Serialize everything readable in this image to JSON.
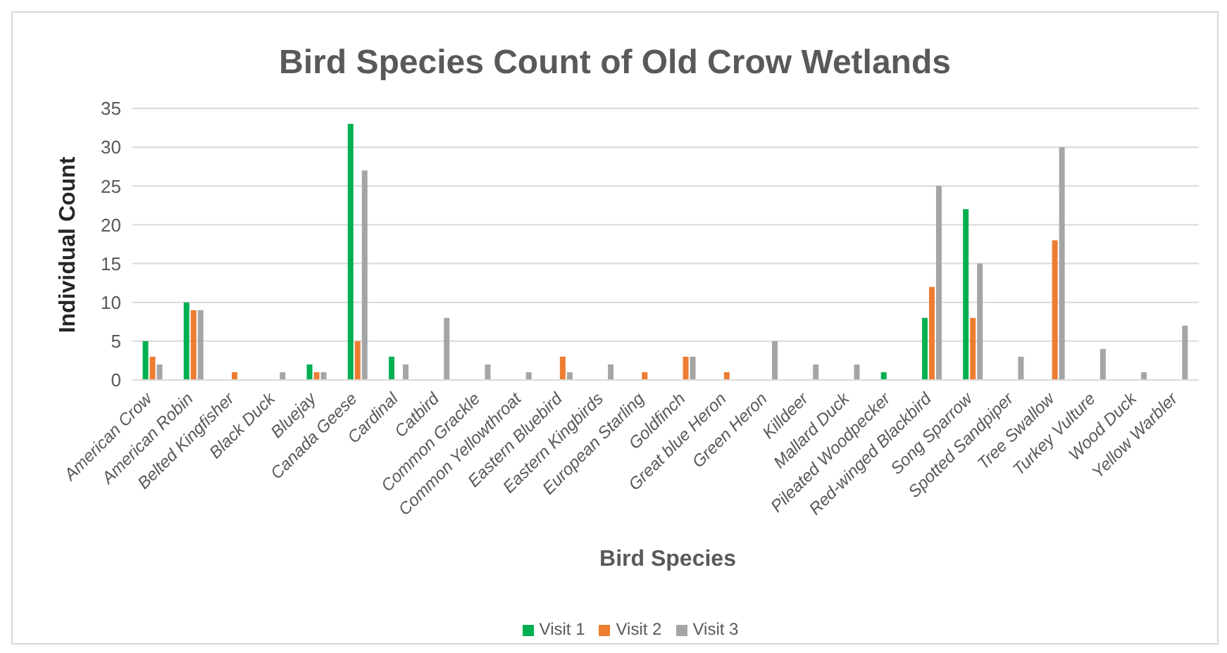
{
  "chart_data": {
    "type": "bar",
    "title": "Bird Species Count of Old Crow Wetlands",
    "xlabel": "Bird Species",
    "ylabel": "Individual Count",
    "categories": [
      "American Crow",
      "American Robin",
      "Belted Kingfisher",
      "Black Duck",
      "Bluejay",
      "Canada Geese",
      "Cardinal",
      "Catbird",
      "Common Grackle",
      "Common Yellowthroat",
      "Eastern Bluebird",
      "Eastern Kingbirds",
      "European Starling",
      "Goldfinch",
      "Great blue Heron",
      "Green Heron",
      "Killdeer",
      "Mallard Duck",
      "Pileated Woodpecker",
      "Red-winged Blackbird",
      "Song Sparrow",
      "Spotted Sandpiper",
      "Tree Swallow",
      "Turkey Vulture",
      "Wood Duck",
      "Yellow Warbler"
    ],
    "series": [
      {
        "name": "Visit 1",
        "color": "#00b050",
        "values": [
          5,
          10,
          0,
          0,
          2,
          33,
          3,
          0,
          0,
          0,
          0,
          0,
          0,
          0,
          0,
          0,
          0,
          0,
          1,
          8,
          22,
          0,
          0,
          0,
          0,
          0
        ]
      },
      {
        "name": "Visit 2",
        "color": "#ed7d31",
        "values": [
          3,
          9,
          1,
          0,
          1,
          5,
          0,
          0,
          0,
          0,
          3,
          0,
          1,
          3,
          1,
          0,
          0,
          0,
          0,
          12,
          8,
          0,
          18,
          0,
          0,
          0
        ]
      },
      {
        "name": "Visit 3",
        "color": "#a5a5a5",
        "values": [
          2,
          9,
          0,
          1,
          1,
          27,
          2,
          8,
          2,
          1,
          1,
          2,
          0,
          3,
          0,
          5,
          2,
          2,
          0,
          25,
          15,
          3,
          30,
          4,
          1,
          7
        ]
      }
    ],
    "ylim": [
      0,
      35
    ],
    "yticks": [
      0,
      5,
      10,
      15,
      20,
      25,
      30,
      35
    ],
    "grid": "y",
    "legend": "bottom"
  }
}
